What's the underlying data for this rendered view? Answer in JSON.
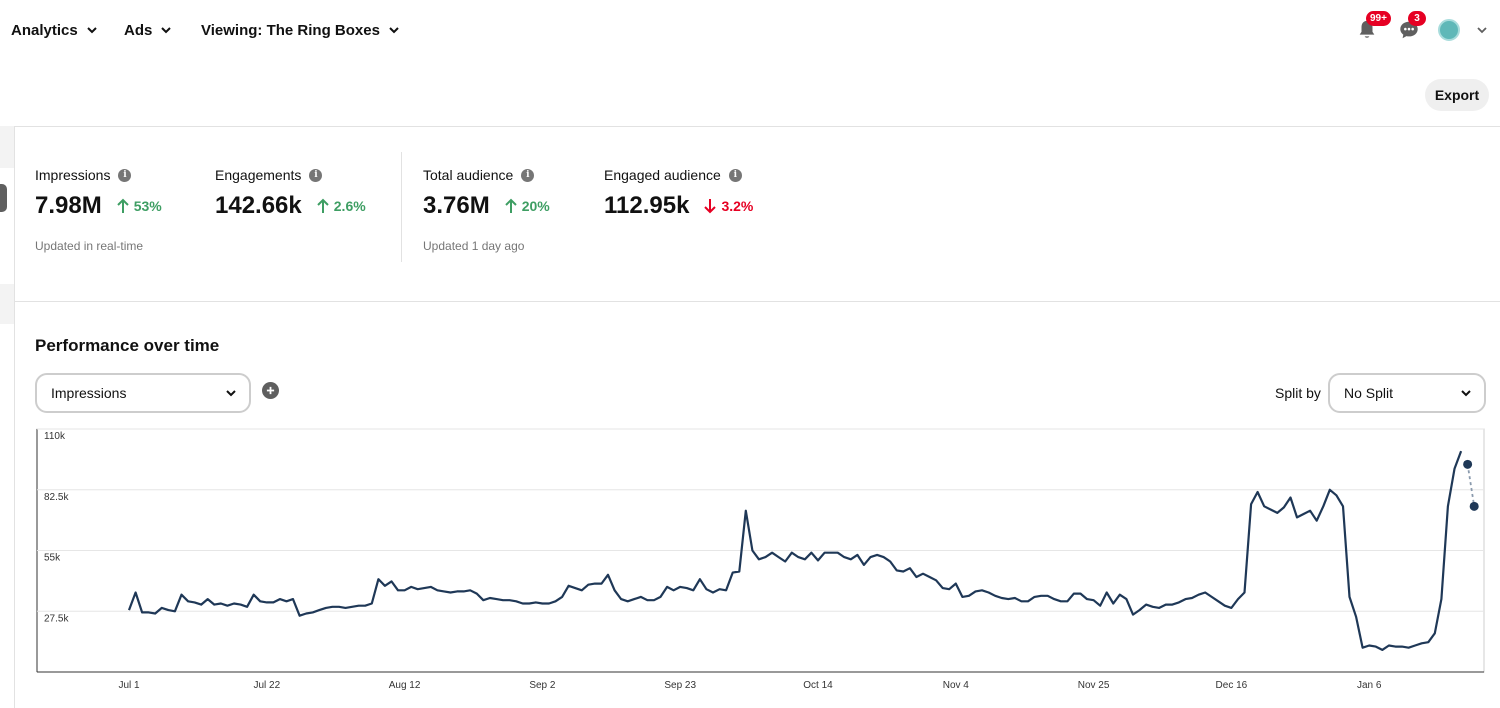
{
  "nav": {
    "items": [
      {
        "label": "Analytics"
      },
      {
        "label": "Ads"
      },
      {
        "label": "Viewing: The Ring Boxes"
      }
    ],
    "notifications_badge": "99+",
    "messages_badge": "3"
  },
  "toolbar": {
    "export_label": "Export"
  },
  "metrics": {
    "impressions": {
      "label": "Impressions",
      "value": "7.98M",
      "change": "53%",
      "direction": "up"
    },
    "engagements": {
      "label": "Engagements",
      "value": "142.66k",
      "change": "2.6%",
      "direction": "up"
    },
    "total_audience": {
      "label": "Total audience",
      "value": "3.76M",
      "change": "20%",
      "direction": "up"
    },
    "engaged_audience": {
      "label": "Engaged audience",
      "value": "112.95k",
      "change": "3.2%",
      "direction": "down"
    },
    "updated_realtime": "Updated in real-time",
    "updated_daily": "Updated 1 day ago"
  },
  "performance": {
    "title": "Performance over time",
    "metric_select": "Impressions",
    "split_label": "Split by",
    "split_select": "No Split"
  },
  "colors": {
    "line": "#1f3857",
    "up": "#3e9e63",
    "down": "#e60023"
  },
  "chart_data": {
    "type": "line",
    "y_ticks": [
      "110k",
      "82.5k",
      "55k",
      "27.5k"
    ],
    "y_tick_values": [
      110000,
      82500,
      55000,
      27500
    ],
    "ylim": [
      0,
      110000
    ],
    "x_ticks": [
      "Jul 1",
      "Jul 22",
      "Aug 12",
      "Sep 2",
      "Sep 23",
      "Oct 14",
      "Nov 4",
      "Nov 25",
      "Dec 16",
      "Jan 6"
    ],
    "start_label": "Jul 1",
    "grid": true,
    "legend": "none",
    "series": [
      {
        "values": [
          28000,
          36000,
          27000,
          27000,
          26500,
          29000,
          28000,
          27500,
          35000,
          32000,
          31500,
          30500,
          33000,
          30500,
          31000,
          30000,
          31000,
          30500,
          29500,
          35000,
          32000,
          31500,
          31500,
          33000,
          32000,
          33000,
          25500,
          26500,
          27000,
          28000,
          29000,
          29500,
          29500,
          29000,
          29500,
          30000,
          30000,
          31000,
          42000,
          39000,
          41000,
          37000,
          37000,
          38500,
          37500,
          38000,
          38500,
          37000,
          36500,
          36000,
          36500,
          36500,
          37000,
          35500,
          32500,
          33500,
          33000,
          32500,
          32500,
          32000,
          31000,
          31000,
          31500,
          31000,
          31000,
          32000,
          34000,
          39000,
          38000,
          37000,
          39500,
          40000,
          40000,
          44000,
          37000,
          33000,
          32000,
          33000,
          34000,
          32500,
          32500,
          34000,
          38500,
          37000,
          38500,
          38000,
          37000,
          42000,
          37500,
          36000,
          37500,
          37000,
          45000,
          45500,
          73000,
          55000,
          51000,
          52000,
          54000,
          52000,
          50000,
          54000,
          52000,
          51000,
          54000,
          50500,
          54000,
          54000,
          54000,
          52000,
          51000,
          53000,
          48500,
          52000,
          53000,
          52000,
          50000,
          46000,
          45500,
          47000,
          43000,
          44500,
          43000,
          41500,
          38000,
          37500,
          40000,
          34000,
          34500,
          36500,
          37000,
          36000,
          34500,
          33500,
          33000,
          33500,
          32000,
          32000,
          34000,
          34500,
          34500,
          33000,
          32000,
          32000,
          35500,
          35500,
          33000,
          32500,
          30000,
          36000,
          31000,
          35000,
          33000,
          26000,
          28000,
          30500,
          29500,
          29000,
          30500,
          30500,
          31500,
          33000,
          33500,
          35000,
          36000,
          34000,
          32000,
          30000,
          29000,
          33000,
          36000,
          76000,
          81500,
          75000,
          73500,
          72000,
          74500,
          79000,
          70000,
          71500,
          73000,
          68500,
          75000,
          82500,
          80000,
          75000,
          34000,
          25000,
          11000,
          12000,
          11500,
          10000,
          12000,
          11500,
          11500,
          11000,
          12000,
          13000,
          13500,
          17500,
          33000,
          75000,
          92000,
          100000
        ]
      },
      {
        "values": [
          94000,
          75000
        ]
      }
    ]
  }
}
